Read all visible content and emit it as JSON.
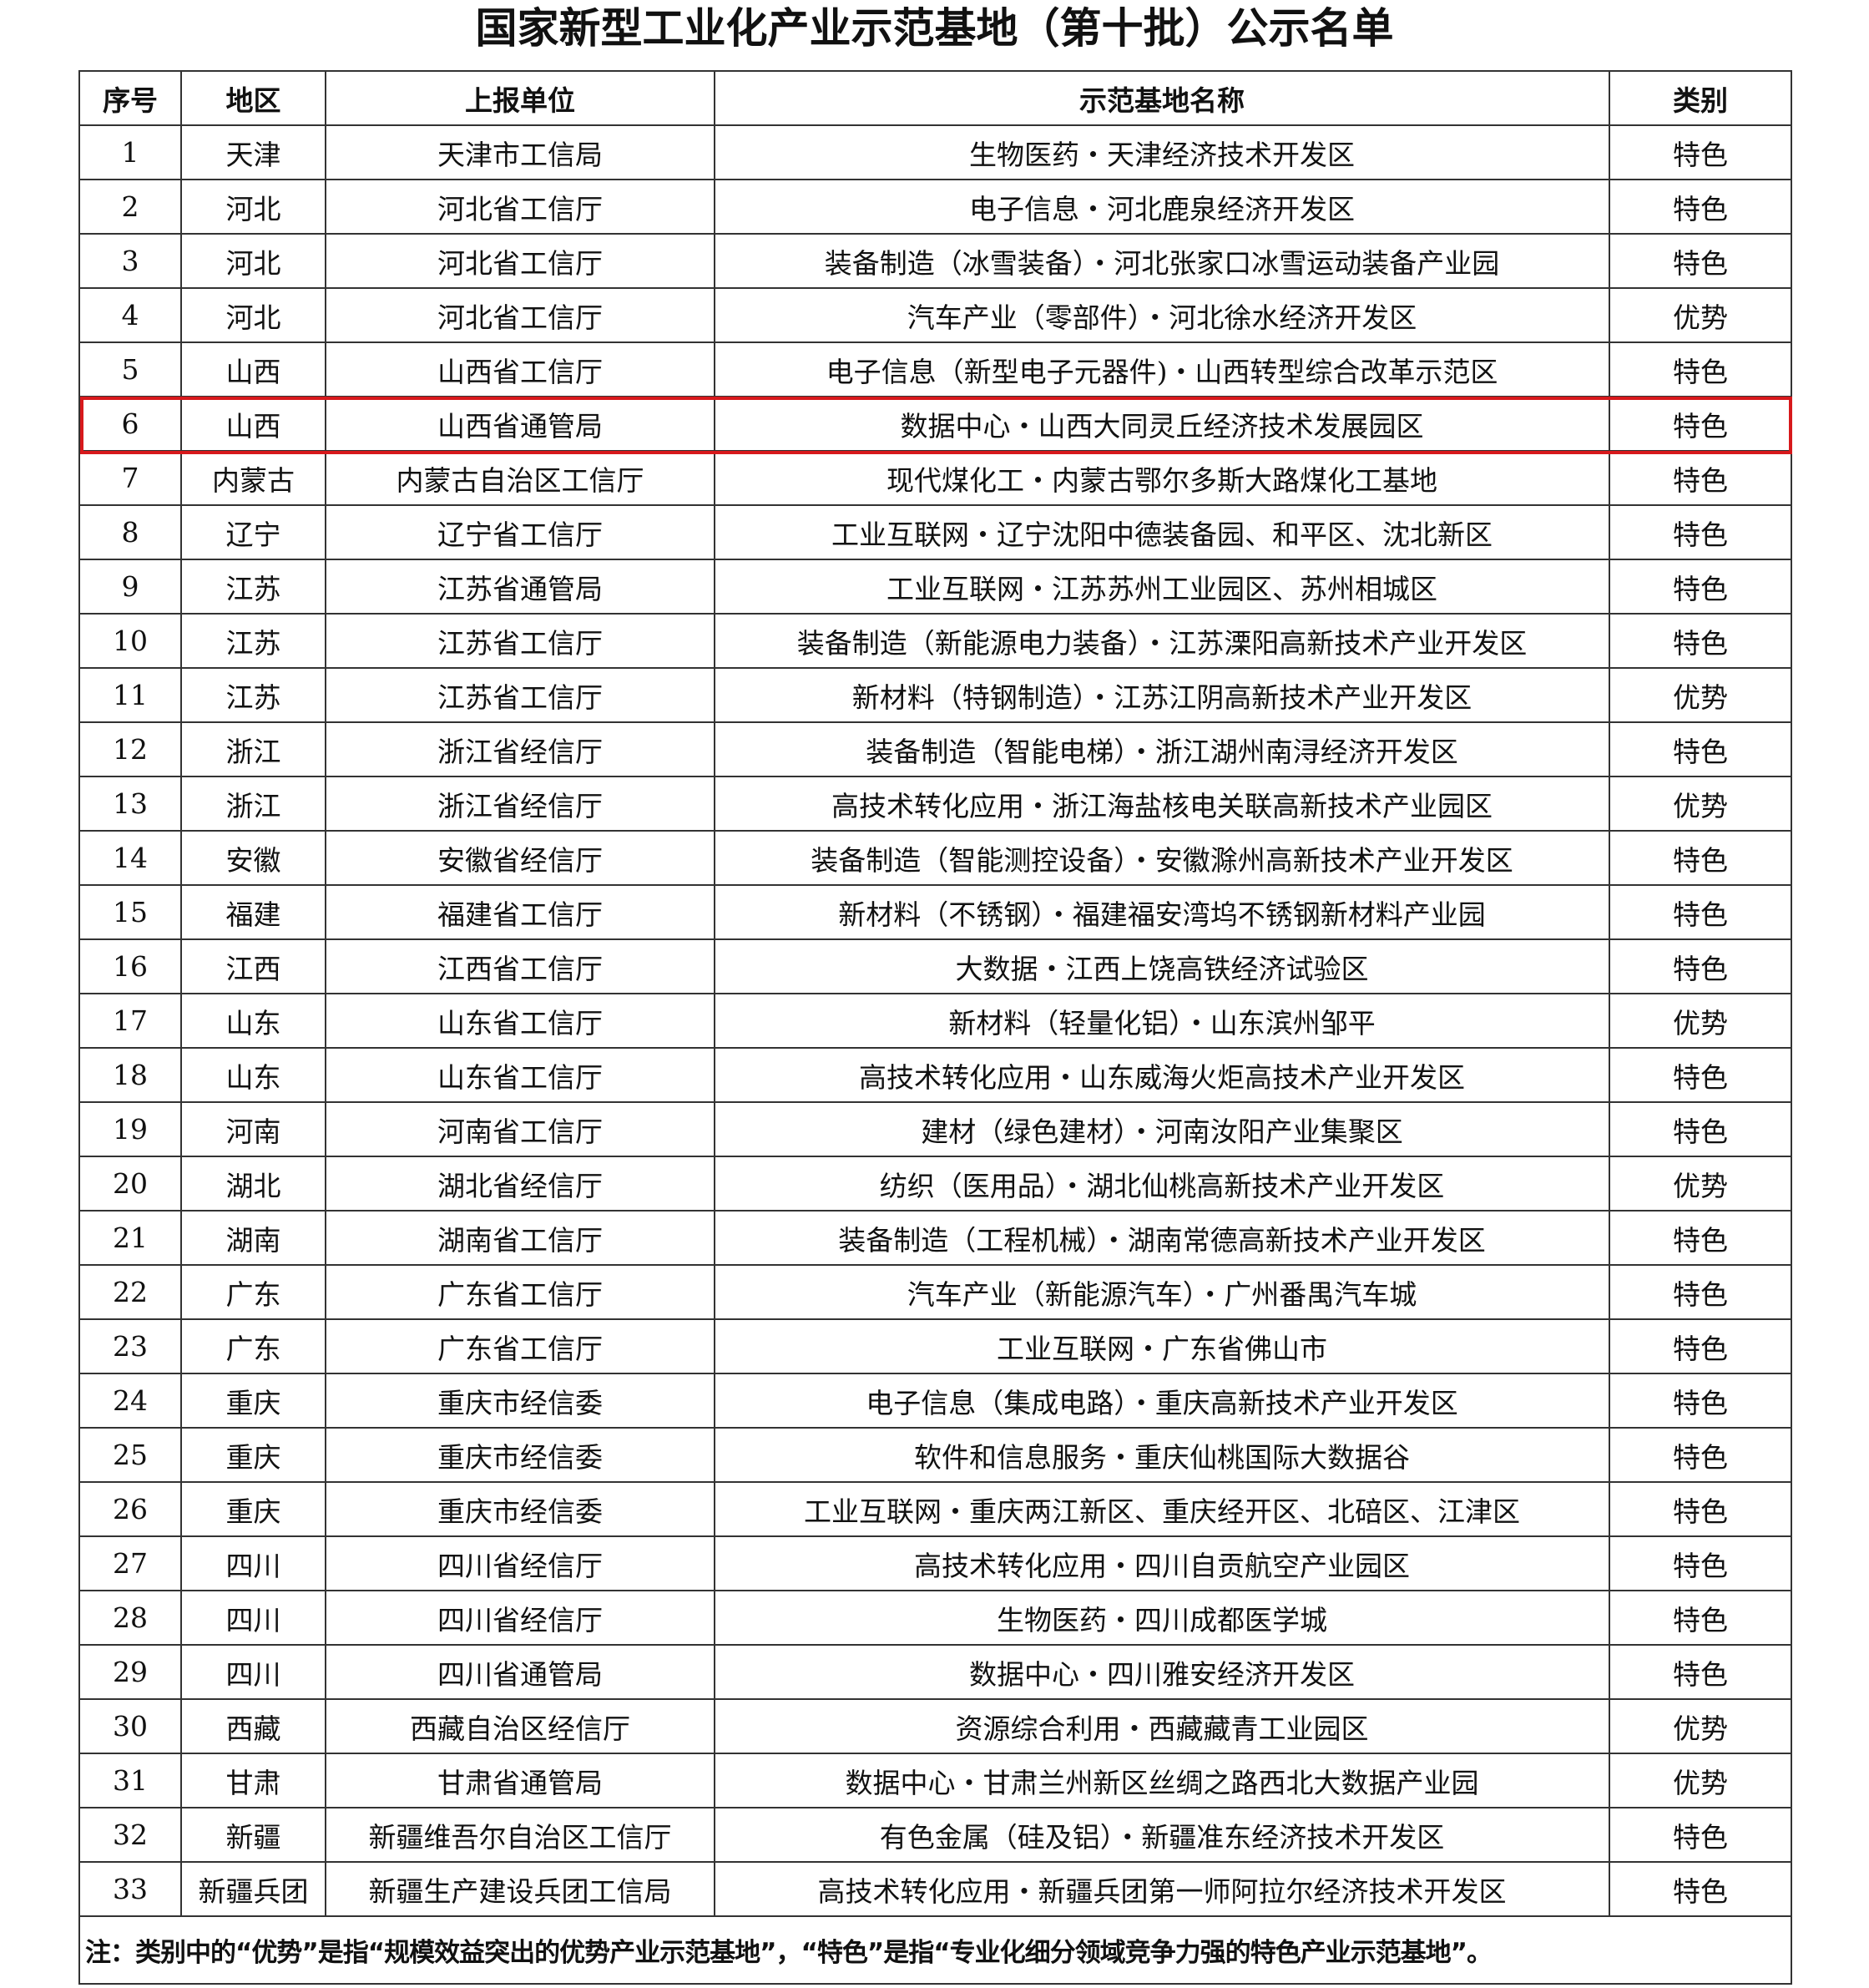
{
  "title": "国家新型工业化产业示范基地（第十批）公示名单",
  "columns": [
    "序号",
    "地区",
    "上报单位",
    "示范基地名称",
    "类别"
  ],
  "highlight_color": "#d7191c",
  "highlighted_row": 6,
  "rows": [
    [
      "1",
      "天津",
      "天津市工信局",
      "生物医药・天津经济技术开发区",
      "特色"
    ],
    [
      "2",
      "河北",
      "河北省工信厅",
      "电子信息・河北鹿泉经济开发区",
      "特色"
    ],
    [
      "3",
      "河北",
      "河北省工信厅",
      "装备制造（冰雪装备）・河北张家口冰雪运动装备产业园",
      "特色"
    ],
    [
      "4",
      "河北",
      "河北省工信厅",
      "汽车产业（零部件）・河北徐水经济开发区",
      "优势"
    ],
    [
      "5",
      "山西",
      "山西省工信厅",
      "电子信息（新型电子元器件)・山西转型综合改革示范区",
      "特色"
    ],
    [
      "6",
      "山西",
      "山西省通管局",
      "数据中心・山西大同灵丘经济技术发展园区",
      "特色"
    ],
    [
      "7",
      "内蒙古",
      "内蒙古自治区工信厅",
      "现代煤化工・内蒙古鄂尔多斯大路煤化工基地",
      "特色"
    ],
    [
      "8",
      "辽宁",
      "辽宁省工信厅",
      "工业互联网・辽宁沈阳中德装备园、和平区、沈北新区",
      "特色"
    ],
    [
      "9",
      "江苏",
      "江苏省通管局",
      "工业互联网・江苏苏州工业园区、苏州相城区",
      "特色"
    ],
    [
      "10",
      "江苏",
      "江苏省工信厅",
      "装备制造（新能源电力装备）・江苏溧阳高新技术产业开发区",
      "特色"
    ],
    [
      "11",
      "江苏",
      "江苏省工信厅",
      "新材料（特钢制造）・江苏江阴高新技术产业开发区",
      "优势"
    ],
    [
      "12",
      "浙江",
      "浙江省经信厅",
      "装备制造（智能电梯）・浙江湖州南浔经济开发区",
      "特色"
    ],
    [
      "13",
      "浙江",
      "浙江省经信厅",
      "高技术转化应用・浙江海盐核电关联高新技术产业园区",
      "优势"
    ],
    [
      "14",
      "安徽",
      "安徽省经信厅",
      "装备制造（智能测控设备）・安徽滁州高新技术产业开发区",
      "特色"
    ],
    [
      "15",
      "福建",
      "福建省工信厅",
      "新材料（不锈钢）・福建福安湾坞不锈钢新材料产业园",
      "特色"
    ],
    [
      "16",
      "江西",
      "江西省工信厅",
      "大数据・江西上饶高铁经济试验区",
      "特色"
    ],
    [
      "17",
      "山东",
      "山东省工信厅",
      "新材料（轻量化铝）・山东滨州邹平",
      "优势"
    ],
    [
      "18",
      "山东",
      "山东省工信厅",
      "高技术转化应用・山东威海火炬高技术产业开发区",
      "特色"
    ],
    [
      "19",
      "河南",
      "河南省工信厅",
      "建材（绿色建材）・河南汝阳产业集聚区",
      "特色"
    ],
    [
      "20",
      "湖北",
      "湖北省经信厅",
      "纺织（医用品）・湖北仙桃高新技术产业开发区",
      "优势"
    ],
    [
      "21",
      "湖南",
      "湖南省工信厅",
      "装备制造（工程机械）・湖南常德高新技术产业开发区",
      "特色"
    ],
    [
      "22",
      "广东",
      "广东省工信厅",
      "汽车产业（新能源汽车）・广州番禺汽车城",
      "特色"
    ],
    [
      "23",
      "广东",
      "广东省工信厅",
      "工业互联网・广东省佛山市",
      "特色"
    ],
    [
      "24",
      "重庆",
      "重庆市经信委",
      "电子信息（集成电路）・重庆高新技术产业开发区",
      "特色"
    ],
    [
      "25",
      "重庆",
      "重庆市经信委",
      "软件和信息服务・重庆仙桃国际大数据谷",
      "特色"
    ],
    [
      "26",
      "重庆",
      "重庆市经信委",
      "工业互联网・重庆两江新区、重庆经开区、北碚区、江津区",
      "特色"
    ],
    [
      "27",
      "四川",
      "四川省经信厅",
      "高技术转化应用・四川自贡航空产业园区",
      "特色"
    ],
    [
      "28",
      "四川",
      "四川省经信厅",
      "生物医药・四川成都医学城",
      "特色"
    ],
    [
      "29",
      "四川",
      "四川省通管局",
      "数据中心・四川雅安经济开发区",
      "特色"
    ],
    [
      "30",
      "西藏",
      "西藏自治区经信厅",
      "资源综合利用・西藏藏青工业园区",
      "优势"
    ],
    [
      "31",
      "甘肃",
      "甘肃省通管局",
      "数据中心・甘肃兰州新区丝绸之路西北大数据产业园",
      "优势"
    ],
    [
      "32",
      "新疆",
      "新疆维吾尔自治区工信厅",
      "有色金属（硅及铝）・新疆准东经济技术开发区",
      "特色"
    ],
    [
      "33",
      "新疆兵团",
      "新疆生产建设兵团工信局",
      "高技术转化应用・新疆兵团第一师阿拉尔经济技术开发区",
      "特色"
    ]
  ],
  "note": "注：类别中的“优势”是指“规模效益突出的优势产业示范基地”，“特色”是指“专业化细分领域竞争力强的特色产业示范基地”。"
}
